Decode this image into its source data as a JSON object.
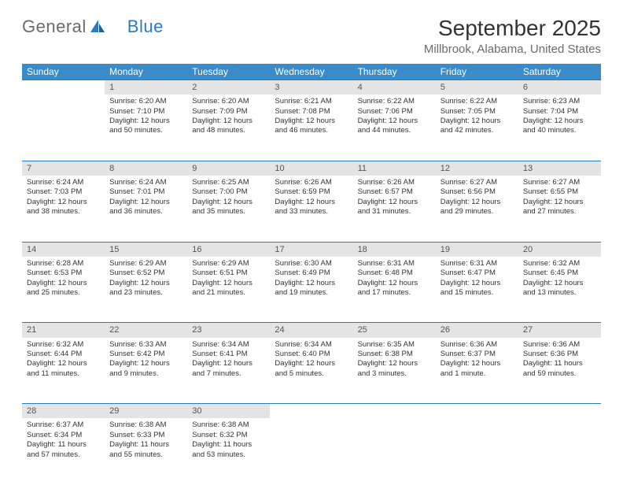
{
  "logo": {
    "text1": "General",
    "text2": "Blue"
  },
  "title": "September 2025",
  "location": "Millbrook, Alabama, United States",
  "day_headers": [
    "Sunday",
    "Monday",
    "Tuesday",
    "Wednesday",
    "Thursday",
    "Friday",
    "Saturday"
  ],
  "colors": {
    "header_bg": "#3a8bc9",
    "header_text": "#ffffff",
    "daynum_bg": "#e4e4e4",
    "rule": "#2a7bbf",
    "body_text": "#333333",
    "location_text": "#6b6b6b"
  },
  "weeks": [
    [
      null,
      {
        "n": "1",
        "sr": "6:20 AM",
        "ss": "7:10 PM",
        "dl": "12 hours and 50 minutes."
      },
      {
        "n": "2",
        "sr": "6:20 AM",
        "ss": "7:09 PM",
        "dl": "12 hours and 48 minutes."
      },
      {
        "n": "3",
        "sr": "6:21 AM",
        "ss": "7:08 PM",
        "dl": "12 hours and 46 minutes."
      },
      {
        "n": "4",
        "sr": "6:22 AM",
        "ss": "7:06 PM",
        "dl": "12 hours and 44 minutes."
      },
      {
        "n": "5",
        "sr": "6:22 AM",
        "ss": "7:05 PM",
        "dl": "12 hours and 42 minutes."
      },
      {
        "n": "6",
        "sr": "6:23 AM",
        "ss": "7:04 PM",
        "dl": "12 hours and 40 minutes."
      }
    ],
    [
      {
        "n": "7",
        "sr": "6:24 AM",
        "ss": "7:03 PM",
        "dl": "12 hours and 38 minutes."
      },
      {
        "n": "8",
        "sr": "6:24 AM",
        "ss": "7:01 PM",
        "dl": "12 hours and 36 minutes."
      },
      {
        "n": "9",
        "sr": "6:25 AM",
        "ss": "7:00 PM",
        "dl": "12 hours and 35 minutes."
      },
      {
        "n": "10",
        "sr": "6:26 AM",
        "ss": "6:59 PM",
        "dl": "12 hours and 33 minutes."
      },
      {
        "n": "11",
        "sr": "6:26 AM",
        "ss": "6:57 PM",
        "dl": "12 hours and 31 minutes."
      },
      {
        "n": "12",
        "sr": "6:27 AM",
        "ss": "6:56 PM",
        "dl": "12 hours and 29 minutes."
      },
      {
        "n": "13",
        "sr": "6:27 AM",
        "ss": "6:55 PM",
        "dl": "12 hours and 27 minutes."
      }
    ],
    [
      {
        "n": "14",
        "sr": "6:28 AM",
        "ss": "6:53 PM",
        "dl": "12 hours and 25 minutes."
      },
      {
        "n": "15",
        "sr": "6:29 AM",
        "ss": "6:52 PM",
        "dl": "12 hours and 23 minutes."
      },
      {
        "n": "16",
        "sr": "6:29 AM",
        "ss": "6:51 PM",
        "dl": "12 hours and 21 minutes."
      },
      {
        "n": "17",
        "sr": "6:30 AM",
        "ss": "6:49 PM",
        "dl": "12 hours and 19 minutes."
      },
      {
        "n": "18",
        "sr": "6:31 AM",
        "ss": "6:48 PM",
        "dl": "12 hours and 17 minutes."
      },
      {
        "n": "19",
        "sr": "6:31 AM",
        "ss": "6:47 PM",
        "dl": "12 hours and 15 minutes."
      },
      {
        "n": "20",
        "sr": "6:32 AM",
        "ss": "6:45 PM",
        "dl": "12 hours and 13 minutes."
      }
    ],
    [
      {
        "n": "21",
        "sr": "6:32 AM",
        "ss": "6:44 PM",
        "dl": "12 hours and 11 minutes."
      },
      {
        "n": "22",
        "sr": "6:33 AM",
        "ss": "6:42 PM",
        "dl": "12 hours and 9 minutes."
      },
      {
        "n": "23",
        "sr": "6:34 AM",
        "ss": "6:41 PM",
        "dl": "12 hours and 7 minutes."
      },
      {
        "n": "24",
        "sr": "6:34 AM",
        "ss": "6:40 PM",
        "dl": "12 hours and 5 minutes."
      },
      {
        "n": "25",
        "sr": "6:35 AM",
        "ss": "6:38 PM",
        "dl": "12 hours and 3 minutes."
      },
      {
        "n": "26",
        "sr": "6:36 AM",
        "ss": "6:37 PM",
        "dl": "12 hours and 1 minute."
      },
      {
        "n": "27",
        "sr": "6:36 AM",
        "ss": "6:36 PM",
        "dl": "11 hours and 59 minutes."
      }
    ],
    [
      {
        "n": "28",
        "sr": "6:37 AM",
        "ss": "6:34 PM",
        "dl": "11 hours and 57 minutes."
      },
      {
        "n": "29",
        "sr": "6:38 AM",
        "ss": "6:33 PM",
        "dl": "11 hours and 55 minutes."
      },
      {
        "n": "30",
        "sr": "6:38 AM",
        "ss": "6:32 PM",
        "dl": "11 hours and 53 minutes."
      },
      null,
      null,
      null,
      null
    ]
  ]
}
